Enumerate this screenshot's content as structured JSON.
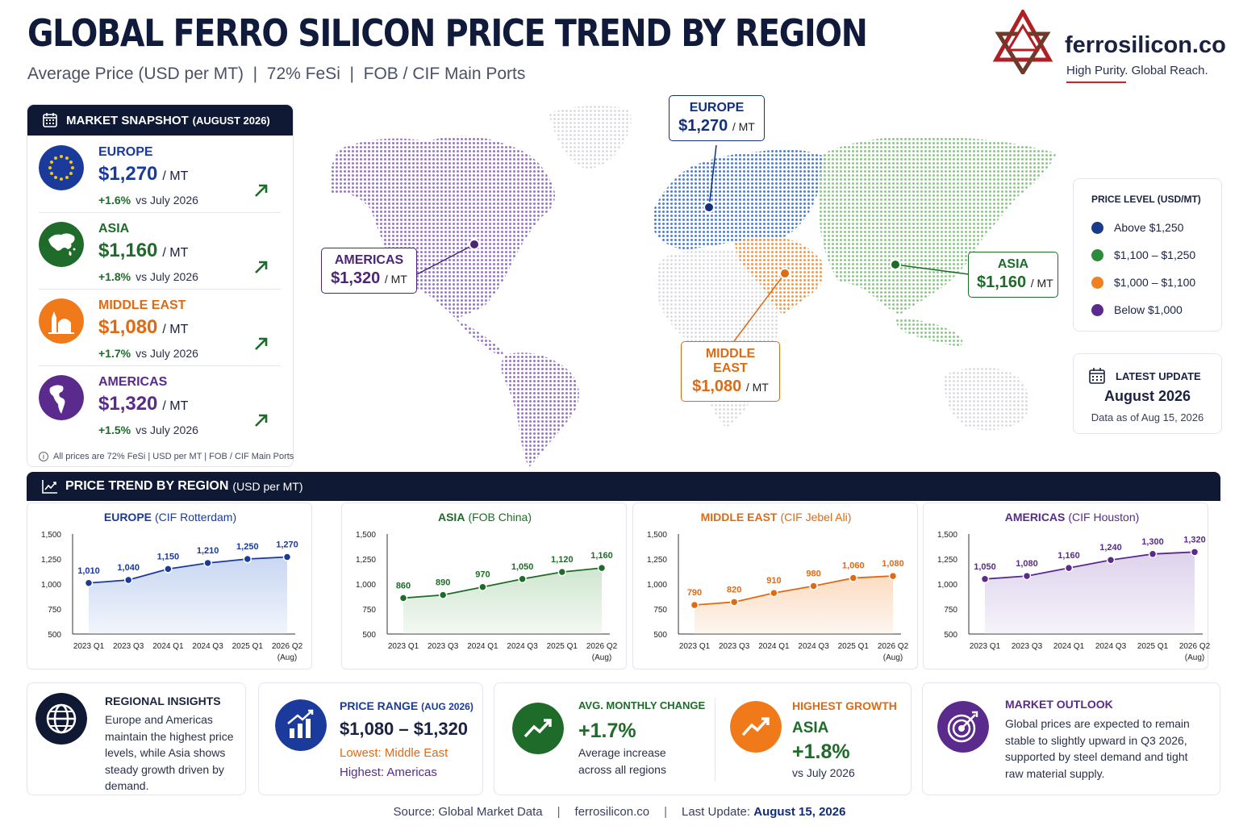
{
  "header": {
    "title": "GLOBAL FERRO SILICON PRICE TREND BY REGION",
    "subtitle": "Average Price (USD per MT)  |  72% FeSi  |  FOB / CIF Main Ports"
  },
  "logo": {
    "name": "ferrosilicon.co",
    "tagline": "High Purity. Global Reach."
  },
  "snapshot": {
    "title": "MARKET SNAPSHOT",
    "title_sub": "(AUGUST 2026)",
    "unit": "/ MT",
    "rows": [
      {
        "region": "EUROPE",
        "price": "$1,270",
        "change": "+1.6%",
        "vs": "vs July 2026",
        "color": "#1a3a9c",
        "icon": "eu-flag-icon"
      },
      {
        "region": "ASIA",
        "price": "$1,160",
        "change": "+1.8%",
        "vs": "vs July 2026",
        "color": "#1e6b2a",
        "icon": "asia-map-icon"
      },
      {
        "region": "MIDDLE EAST",
        "price": "$1,080",
        "change": "+1.7%",
        "vs": "vs July 2026",
        "color": "#e06a12",
        "icon": "landmark-icon"
      },
      {
        "region": "AMERICAS",
        "price": "$1,320",
        "change": "+1.5%",
        "vs": "vs July 2026",
        "color": "#5a2a8c",
        "icon": "americas-globe-icon"
      }
    ],
    "note": "All prices are 72% FeSi | USD per MT | FOB / CIF Main Ports"
  },
  "map_callouts": [
    {
      "region": "EUROPE",
      "price": "$1,270",
      "unit": "/ MT"
    },
    {
      "region": "AMERICAS",
      "price": "$1,320",
      "unit": "/ MT"
    },
    {
      "region": "ASIA",
      "price": "$1,160",
      "unit": "/ MT"
    },
    {
      "region": "MIDDLE EAST",
      "price": "$1,080",
      "unit": "/ MT"
    }
  ],
  "legend": {
    "title": "PRICE LEVEL (USD/MT)",
    "items": [
      {
        "label": "Above $1,250",
        "color": "#1a3a8c"
      },
      {
        "label": "$1,100 – $1,250",
        "color": "#2e8b3a"
      },
      {
        "label": "$1,000 – $1,100",
        "color": "#f08020"
      },
      {
        "label": "Below $1,000",
        "color": "#5a2a8c"
      }
    ]
  },
  "latest_update": {
    "label": "LATEST UPDATE",
    "month": "August 2026",
    "as_of": "Data as of Aug 15, 2026"
  },
  "trend": {
    "title": "PRICE TREND BY REGION",
    "unit": "(USD per MT)"
  },
  "chart_data": [
    {
      "type": "area",
      "title": "EUROPE",
      "subtitle": "(CIF Rotterdam)",
      "color": "#1a3a9c",
      "fill": "#c9d7f2",
      "categories": [
        "2023 Q1",
        "2023 Q3",
        "2024 Q1",
        "2024 Q3",
        "2025 Q1",
        "2026 Q2"
      ],
      "last_category_note": "(Aug)",
      "values": [
        1010,
        1040,
        1150,
        1210,
        1250,
        1270
      ],
      "labels": [
        "1,010",
        "1,040",
        "1,150",
        "1,210",
        "1,250",
        "1,270"
      ],
      "ylim": [
        500,
        1500
      ],
      "yticks": [
        "500",
        "750",
        "1,000",
        "1,250",
        "1,500"
      ]
    },
    {
      "type": "area",
      "title": "ASIA",
      "subtitle": "(FOB China)",
      "color": "#1e6b2a",
      "fill": "#cfe6cf",
      "categories": [
        "2023 Q1",
        "2023 Q3",
        "2024 Q1",
        "2024 Q3",
        "2025 Q1",
        "2026 Q2"
      ],
      "last_category_note": "(Aug)",
      "values": [
        860,
        890,
        970,
        1050,
        1120,
        1160
      ],
      "labels": [
        "860",
        "890",
        "970",
        "1,050",
        "1,120",
        "1,160"
      ],
      "ylim": [
        500,
        1500
      ],
      "yticks": [
        "500",
        "750",
        "1,000",
        "1,250",
        "1,500"
      ]
    },
    {
      "type": "area",
      "title": "MIDDLE EAST",
      "subtitle": "(CIF Jebel Ali)",
      "color": "#e06a12",
      "fill": "#fbdcc2",
      "categories": [
        "2023 Q1",
        "2023 Q3",
        "2024 Q1",
        "2024 Q3",
        "2025 Q1",
        "2026 Q2"
      ],
      "last_category_note": "(Aug)",
      "values": [
        790,
        820,
        910,
        980,
        1060,
        1080
      ],
      "labels": [
        "790",
        "820",
        "910",
        "980",
        "1,060",
        "1,080"
      ],
      "ylim": [
        500,
        1500
      ],
      "yticks": [
        "500",
        "750",
        "1,000",
        "1,250",
        "1,500"
      ]
    },
    {
      "type": "area",
      "title": "AMERICAS",
      "subtitle": "(CIF Houston)",
      "color": "#5a2a8c",
      "fill": "#ddd2ec",
      "categories": [
        "2023 Q1",
        "2023 Q3",
        "2024 Q1",
        "2024 Q3",
        "2025 Q1",
        "2026 Q2"
      ],
      "last_category_note": "(Aug)",
      "values": [
        1050,
        1080,
        1160,
        1240,
        1300,
        1320
      ],
      "labels": [
        "1,050",
        "1,080",
        "1,160",
        "1,240",
        "1,300",
        "1,320"
      ],
      "ylim": [
        500,
        1500
      ],
      "yticks": [
        "500",
        "750",
        "1,000",
        "1,250",
        "1,500"
      ]
    }
  ],
  "insights": {
    "regional": {
      "label": "REGIONAL INSIGHTS",
      "text": "Europe and Americas maintain the highest price levels, while Asia shows steady growth driven by demand."
    },
    "range": {
      "label": "PRICE RANGE",
      "label_sub": "(AUG 2026)",
      "value": "$1,080 – $1,320",
      "lowest": "Lowest: Middle East",
      "highest": "Highest: Americas"
    },
    "avg_change": {
      "label": "AVG. MONTHLY CHANGE",
      "value": "+1.7%",
      "text": "Average increase across all regions"
    },
    "highest_growth": {
      "label": "HIGHEST GROWTH",
      "region": "ASIA",
      "value": "+1.8%",
      "vs": "vs July 2026"
    },
    "outlook": {
      "label": "MARKET OUTLOOK",
      "text": "Global prices are expected to remain stable to slightly upward in Q3 2026, supported by steel demand and tight raw material supply."
    }
  },
  "footer": {
    "source": "Source: Global Market Data",
    "site": "ferrosilicon.co",
    "update_label": "Last Update:",
    "update_date": "August 15, 2026"
  }
}
